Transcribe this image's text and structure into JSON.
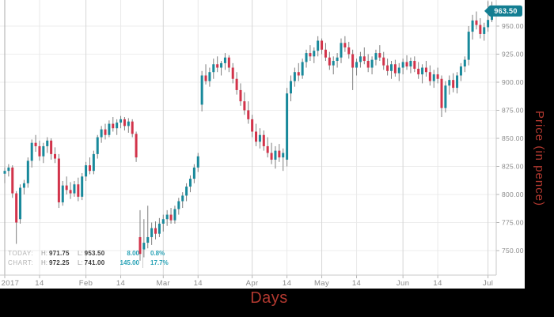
{
  "colors": {
    "up": "#18899b",
    "down": "#d2334a",
    "wick": "#7f7f7f",
    "badge": "#137e92",
    "badge_text": "#ffffff",
    "axis_text": "#8a8a8a",
    "axis_line": "#c8c8c8",
    "grid_h": "#ededed",
    "grid_month": "#d6d6d6",
    "grid_mid": "#e9e9e9",
    "grid_year": "#ababab",
    "accent_red": "#b23930",
    "teal_text": "#2ba3b7",
    "info_label": "#b3b3b3",
    "info_key": "#9a9a9a",
    "info_value": "#3d3d3d"
  },
  "chart_data": {
    "type": "candlestick",
    "title": "",
    "xlabel": "Days",
    "ylabel": "Price (in pence)",
    "grid": true,
    "ylim": [
      728,
      973
    ],
    "y_ticks": [
      "950.00",
      "925.00",
      "900.00",
      "875.00",
      "850.00",
      "825.00",
      "800.00",
      "775.00",
      "750.00"
    ],
    "x_ticks": [
      {
        "label": "2017",
        "month": 1,
        "day": 1
      },
      {
        "label": "14",
        "month": 1,
        "day": 14
      },
      {
        "label": "Feb",
        "month": 2,
        "day": 1
      },
      {
        "label": "14",
        "month": 2,
        "day": 14
      },
      {
        "label": "Mar",
        "month": 3,
        "day": 1
      },
      {
        "label": "14",
        "month": 3,
        "day": 14
      },
      {
        "label": "Apr",
        "month": 4,
        "day": 1
      },
      {
        "label": "14",
        "month": 4,
        "day": 14
      },
      {
        "label": "May",
        "month": 5,
        "day": 1
      },
      {
        "label": "14",
        "month": 5,
        "day": 14
      },
      {
        "label": "Jun",
        "month": 6,
        "day": 1
      },
      {
        "label": "14",
        "month": 6,
        "day": 14
      },
      {
        "label": "Jul",
        "month": 7,
        "day": 1
      }
    ],
    "last_price_label": "963.50",
    "candle_format": [
      "month",
      "day",
      "open",
      "high",
      "low",
      "close"
    ],
    "candles": [
      [
        1,
        3,
        818.5,
        824,
        810,
        821
      ],
      [
        1,
        4,
        821,
        827,
        816,
        824
      ],
      [
        1,
        5,
        824,
        826,
        797,
        801
      ],
      [
        1,
        6,
        801,
        803,
        756,
        775
      ],
      [
        1,
        9,
        778,
        809,
        774,
        806
      ],
      [
        1,
        10,
        806,
        813,
        800,
        810
      ],
      [
        1,
        11,
        810,
        833,
        806,
        830
      ],
      [
        1,
        12,
        830,
        849,
        824,
        846
      ],
      [
        1,
        13,
        846,
        853,
        838,
        843
      ],
      [
        1,
        16,
        843,
        848,
        830,
        834
      ],
      [
        1,
        17,
        834,
        846,
        828,
        843
      ],
      [
        1,
        18,
        843,
        851,
        837,
        848
      ],
      [
        1,
        19,
        848,
        850,
        831,
        836
      ],
      [
        1,
        20,
        836,
        842,
        828,
        832
      ],
      [
        1,
        23,
        832,
        836,
        788,
        793
      ],
      [
        1,
        24,
        793,
        812,
        790,
        808
      ],
      [
        1,
        25,
        808,
        816,
        800,
        804
      ],
      [
        1,
        26,
        804,
        811,
        796,
        801
      ],
      [
        1,
        27,
        801,
        812,
        798,
        809
      ],
      [
        1,
        30,
        809,
        815,
        794,
        798
      ],
      [
        1,
        31,
        798,
        819,
        795,
        816
      ],
      [
        2,
        1,
        816,
        829,
        812,
        826
      ],
      [
        2,
        2,
        826,
        833,
        818,
        821
      ],
      [
        2,
        3,
        821,
        839,
        818,
        836
      ],
      [
        2,
        6,
        836,
        853,
        832,
        851
      ],
      [
        2,
        7,
        851,
        861,
        846,
        858
      ],
      [
        2,
        8,
        858,
        863,
        849,
        853
      ],
      [
        2,
        9,
        853,
        866,
        851,
        863
      ],
      [
        2,
        10,
        863,
        869,
        856,
        859
      ],
      [
        2,
        13,
        859,
        867,
        853,
        864
      ],
      [
        2,
        14,
        864,
        870,
        859,
        867
      ],
      [
        2,
        15,
        867,
        869,
        857,
        861
      ],
      [
        2,
        16,
        861,
        868,
        855,
        865
      ],
      [
        2,
        17,
        865,
        867,
        851,
        854
      ],
      [
        2,
        20,
        854,
        856,
        829,
        833
      ],
      [
        2,
        21,
        762,
        786,
        741,
        747
      ],
      [
        2,
        22,
        751,
        778,
        744,
        757
      ],
      [
        2,
        23,
        757,
        790,
        752,
        762
      ],
      [
        2,
        24,
        762,
        775,
        755,
        770
      ],
      [
        2,
        27,
        770,
        776,
        760,
        765
      ],
      [
        2,
        28,
        765,
        779,
        762,
        774
      ],
      [
        3,
        1,
        774,
        782,
        767,
        778
      ],
      [
        3,
        2,
        778,
        786,
        772,
        782
      ],
      [
        3,
        3,
        782,
        788,
        774,
        777
      ],
      [
        3,
        6,
        777,
        790,
        774,
        787
      ],
      [
        3,
        7,
        787,
        797,
        782,
        794
      ],
      [
        3,
        8,
        794,
        802,
        788,
        799
      ],
      [
        3,
        9,
        799,
        810,
        794,
        807
      ],
      [
        3,
        10,
        807,
        817,
        802,
        814
      ],
      [
        3,
        13,
        814,
        827,
        810,
        824
      ],
      [
        3,
        14,
        824,
        837,
        820,
        834
      ],
      [
        3,
        15,
        880,
        910,
        874,
        906
      ],
      [
        3,
        16,
        906,
        916,
        898,
        901
      ],
      [
        3,
        17,
        901,
        913,
        896,
        909
      ],
      [
        3,
        20,
        909,
        921,
        903,
        916
      ],
      [
        3,
        21,
        916,
        923,
        909,
        913
      ],
      [
        3,
        22,
        913,
        919,
        906,
        917
      ],
      [
        3,
        23,
        917,
        926,
        911,
        922
      ],
      [
        3,
        24,
        922,
        924,
        909,
        913
      ],
      [
        3,
        27,
        913,
        917,
        899,
        903
      ],
      [
        3,
        28,
        903,
        909,
        889,
        893
      ],
      [
        3,
        29,
        893,
        899,
        879,
        883
      ],
      [
        3,
        30,
        883,
        891,
        871,
        875
      ],
      [
        3,
        31,
        875,
        883,
        863,
        867
      ],
      [
        4,
        3,
        867,
        871,
        851,
        856
      ],
      [
        4,
        4,
        856,
        863,
        843,
        847
      ],
      [
        4,
        5,
        847,
        859,
        841,
        853
      ],
      [
        4,
        6,
        853,
        857,
        839,
        843
      ],
      [
        4,
        7,
        843,
        851,
        833,
        837
      ],
      [
        4,
        10,
        837,
        846,
        827,
        831
      ],
      [
        4,
        11,
        831,
        843,
        823,
        839
      ],
      [
        4,
        12,
        839,
        845,
        829,
        833
      ],
      [
        4,
        13,
        833,
        841,
        821,
        837
      ],
      [
        4,
        18,
        831,
        895,
        825,
        890
      ],
      [
        4,
        19,
        890,
        906,
        883,
        901
      ],
      [
        4,
        20,
        901,
        913,
        896,
        909
      ],
      [
        4,
        21,
        909,
        917,
        901,
        906
      ],
      [
        4,
        24,
        906,
        921,
        903,
        918
      ],
      [
        4,
        25,
        918,
        929,
        913,
        926
      ],
      [
        4,
        26,
        926,
        933,
        919,
        923
      ],
      [
        4,
        27,
        923,
        931,
        917,
        928
      ],
      [
        4,
        28,
        928,
        941,
        923,
        937
      ],
      [
        5,
        2,
        937,
        939,
        925,
        929
      ],
      [
        5,
        3,
        929,
        935,
        919,
        922
      ],
      [
        5,
        4,
        922,
        927,
        911,
        915
      ],
      [
        5,
        5,
        915,
        923,
        907,
        919
      ],
      [
        5,
        8,
        919,
        926,
        913,
        922
      ],
      [
        5,
        9,
        922,
        939,
        917,
        935
      ],
      [
        5,
        10,
        935,
        941,
        927,
        931
      ],
      [
        5,
        11,
        931,
        936,
        921,
        925
      ],
      [
        5,
        12,
        925,
        929,
        893,
        913
      ],
      [
        5,
        15,
        913,
        921,
        906,
        918
      ],
      [
        5,
        16,
        918,
        927,
        913,
        923
      ],
      [
        5,
        17,
        923,
        931,
        916,
        919
      ],
      [
        5,
        18,
        919,
        925,
        909,
        913
      ],
      [
        5,
        19,
        913,
        923,
        907,
        920
      ],
      [
        5,
        22,
        920,
        929,
        915,
        926
      ],
      [
        5,
        23,
        926,
        933,
        919,
        922
      ],
      [
        5,
        24,
        922,
        927,
        911,
        915
      ],
      [
        5,
        25,
        915,
        921,
        906,
        910
      ],
      [
        5,
        26,
        910,
        919,
        903,
        916
      ],
      [
        5,
        30,
        916,
        920,
        905,
        908
      ],
      [
        5,
        31,
        908,
        917,
        901,
        913
      ],
      [
        6,
        1,
        913,
        921,
        907,
        918
      ],
      [
        6,
        2,
        918,
        924,
        911,
        914
      ],
      [
        6,
        5,
        914,
        922,
        908,
        919
      ],
      [
        6,
        6,
        919,
        923,
        909,
        912
      ],
      [
        6,
        7,
        912,
        918,
        903,
        907
      ],
      [
        6,
        8,
        907,
        916,
        899,
        913
      ],
      [
        6,
        9,
        913,
        919,
        905,
        909
      ],
      [
        6,
        12,
        909,
        915,
        897,
        901
      ],
      [
        6,
        13,
        901,
        911,
        895,
        907
      ],
      [
        6,
        14,
        907,
        913,
        899,
        903
      ],
      [
        6,
        15,
        903,
        906,
        869,
        877
      ],
      [
        6,
        16,
        877,
        901,
        873,
        897
      ],
      [
        6,
        19,
        897,
        906,
        889,
        902
      ],
      [
        6,
        20,
        902,
        908,
        891,
        895
      ],
      [
        6,
        21,
        895,
        909,
        890,
        906
      ],
      [
        6,
        22,
        906,
        917,
        901,
        914
      ],
      [
        6,
        23,
        914,
        923,
        909,
        920
      ],
      [
        6,
        26,
        920,
        950,
        915,
        945
      ],
      [
        6,
        27,
        945,
        960,
        938,
        955
      ],
      [
        6,
        28,
        955,
        963,
        947,
        951
      ],
      [
        6,
        29,
        951,
        957,
        939,
        943
      ],
      [
        6,
        30,
        943,
        953,
        937,
        949
      ],
      [
        7,
        3,
        949,
        972.25,
        945,
        955.5
      ],
      [
        7,
        4,
        955.5,
        971.75,
        953.5,
        963.5
      ]
    ]
  },
  "info_panel": {
    "rows": [
      {
        "label": "TODAY:",
        "high_label": "H:",
        "high": "971.75",
        "low_label": "L:",
        "low": "953.50",
        "change": "8.00",
        "change_pct": "0.8%"
      },
      {
        "label": "CHART:",
        "high_label": "H:",
        "high": "972.25",
        "low_label": "L:",
        "low": "741.00",
        "change": "145.00",
        "change_pct": "17.7%"
      }
    ]
  },
  "axis_titles": {
    "x": "Days",
    "y": "Price (in pence)"
  }
}
